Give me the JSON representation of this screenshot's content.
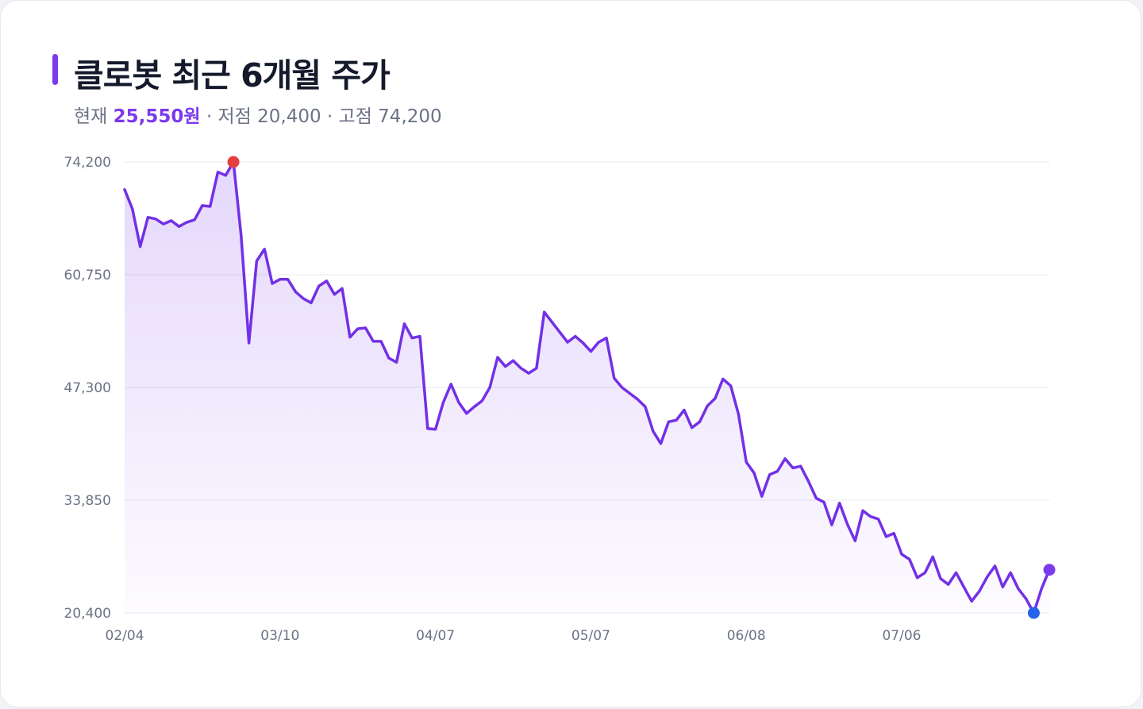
{
  "header": {
    "title": "클로봇 최근 6개월 주가",
    "subtitle": {
      "current_label": "현재",
      "current_value": "25,550원",
      "low_text": "· 저점 20,400",
      "high_text": "· 고점 74,200"
    }
  },
  "colors": {
    "accent": "#7c3aed",
    "line": "#7330e6",
    "high_marker": "#e53e3e",
    "low_marker": "#2563eb",
    "grid": "#e6e8ee"
  },
  "chart_data": {
    "type": "area",
    "title": "클로봇 최근 6개월 주가",
    "xlabel": "",
    "ylabel": "",
    "ylim": [
      20400,
      74200
    ],
    "yticks": [
      "74,200",
      "60,750",
      "47,300",
      "33,850",
      "20,400"
    ],
    "xticks": [
      "02/04",
      "03/10",
      "04/07",
      "05/07",
      "06/08",
      "07/06"
    ],
    "grid": true,
    "high": 74200,
    "low": 20400,
    "current": 25550,
    "series": [
      {
        "values": [
          70900,
          68600,
          64100,
          67600,
          67400,
          66800,
          67200,
          66500,
          67000,
          67300,
          69000,
          68900,
          73000,
          72600,
          74200,
          65400,
          52600,
          62400,
          63800,
          59700,
          60200,
          60200,
          58700,
          57900,
          57400,
          59400,
          60000,
          58400,
          59100,
          53300,
          54300,
          54400,
          52800,
          52800,
          50800,
          50300,
          54900,
          53200,
          53400,
          42400,
          42300,
          45500,
          47700,
          45500,
          44200,
          45000,
          45700,
          47300,
          50900,
          49800,
          50500,
          49600,
          49000,
          49600,
          56300,
          55100,
          53900,
          52700,
          53400,
          52600,
          51600,
          52700,
          53200,
          48400,
          47300,
          46600,
          45900,
          45000,
          42100,
          40600,
          43200,
          43400,
          44600,
          42500,
          43200,
          45100,
          46000,
          48300,
          47500,
          44100,
          38400,
          37100,
          34300,
          36900,
          37300,
          38800,
          37700,
          37900,
          36100,
          34100,
          33600,
          30900,
          33500,
          31000,
          29000,
          32600,
          31900,
          31600,
          29500,
          29900,
          27400,
          26800,
          24600,
          25200,
          27100,
          24500,
          23800,
          25200,
          23500,
          21800,
          23000,
          24700,
          26000,
          23500,
          25200,
          23300,
          22100,
          20400,
          23300,
          25550
        ]
      }
    ]
  }
}
